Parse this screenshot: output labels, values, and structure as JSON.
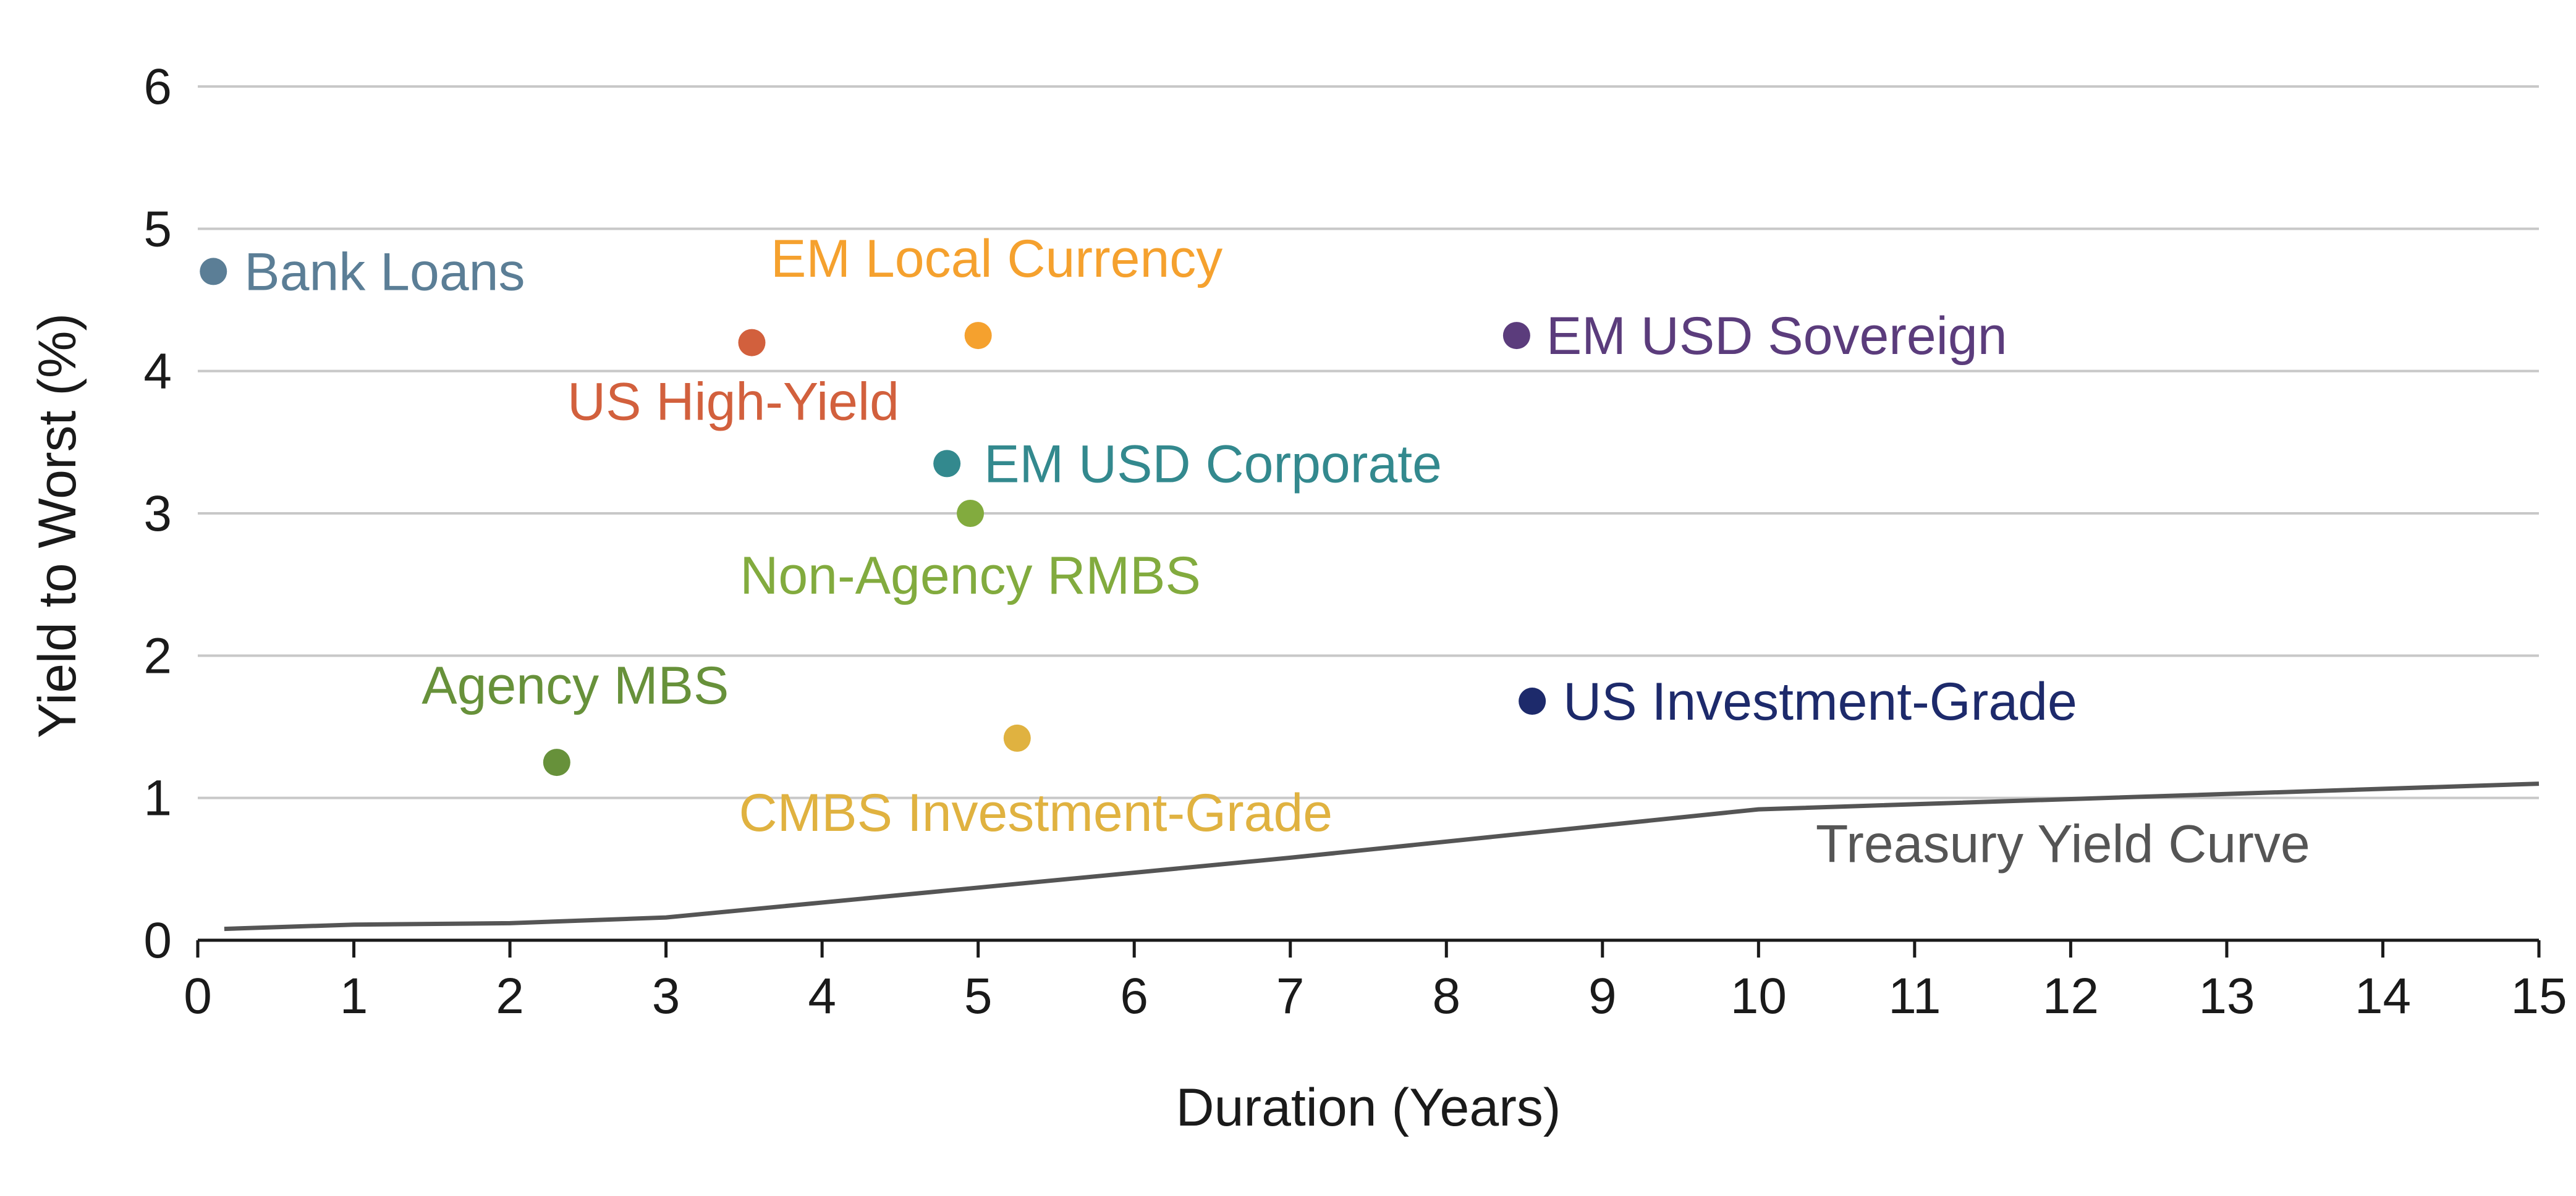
{
  "chart_data": {
    "type": "scatter",
    "xlabel": "Duration (Years)",
    "ylabel": "Yield to Worst (%)",
    "xlim": [
      0,
      15
    ],
    "ylim": [
      0,
      6
    ],
    "x_ticks": [
      0,
      1,
      2,
      3,
      4,
      5,
      6,
      7,
      8,
      9,
      10,
      11,
      12,
      13,
      14,
      15
    ],
    "y_ticks": [
      0,
      1,
      2,
      3,
      4,
      5,
      6
    ],
    "grid": "horizontal",
    "points": [
      {
        "name": "Bank Loans",
        "x": 0.1,
        "y": 4.7,
        "color": "#5b7e96"
      },
      {
        "name": "US High-Yield",
        "x": 3.55,
        "y": 4.2,
        "color": "#d2603d"
      },
      {
        "name": "EM Local Currency",
        "x": 5.0,
        "y": 4.25,
        "color": "#f5a12e"
      },
      {
        "name": "EM USD Sovereign",
        "x": 8.45,
        "y": 4.25,
        "color": "#5b3c7c"
      },
      {
        "name": "EM USD Corporate",
        "x": 4.8,
        "y": 3.35,
        "color": "#33898e"
      },
      {
        "name": "Non-Agency RMBS",
        "x": 4.95,
        "y": 3.0,
        "color": "#82ab3e"
      },
      {
        "name": "Agency MBS",
        "x": 2.3,
        "y": 1.25,
        "color": "#67913a"
      },
      {
        "name": "CMBS Investment-Grade",
        "x": 5.25,
        "y": 1.42,
        "color": "#e0b240"
      },
      {
        "name": "US Investment-Grade",
        "x": 8.55,
        "y": 1.68,
        "color": "#1d2a6b"
      }
    ],
    "series": [
      {
        "name": "Treasury Yield Curve",
        "type": "line",
        "color": "#555555",
        "x": [
          0.17,
          1,
          2,
          3,
          5,
          7,
          10,
          15
        ],
        "y": [
          0.08,
          0.11,
          0.12,
          0.16,
          0.37,
          0.58,
          0.92,
          1.1
        ]
      }
    ]
  }
}
